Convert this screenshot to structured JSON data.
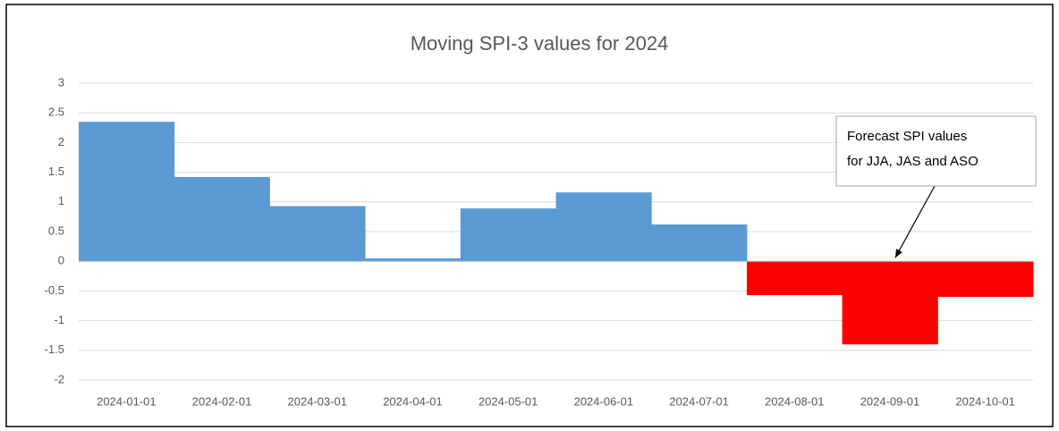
{
  "chart_data": {
    "type": "bar",
    "title": "Moving SPI-3 values for 2024",
    "categories": [
      "2024-01-01",
      "2024-02-01",
      "2024-03-01",
      "2024-04-01",
      "2024-05-01",
      "2024-06-01",
      "2024-07-01",
      "2024-08-01",
      "2024-09-01",
      "2024-10-01"
    ],
    "values": [
      2.35,
      1.42,
      0.93,
      0.05,
      0.89,
      1.16,
      0.62,
      -0.57,
      -1.4,
      -0.6
    ],
    "colors": [
      "#5b9bd5",
      "#5b9bd5",
      "#5b9bd5",
      "#5b9bd5",
      "#5b9bd5",
      "#5b9bd5",
      "#5b9bd5",
      "#ff0000",
      "#ff0000",
      "#ff0000"
    ],
    "ylim": [
      -2,
      3
    ],
    "yticks": [
      -2,
      -1.5,
      -1,
      -0.5,
      0,
      0.5,
      1,
      1.5,
      2,
      2.5,
      3
    ],
    "grid": true,
    "annotation": {
      "lines": [
        "Forecast SPI values",
        "for JJA, JAS and ASO"
      ],
      "target": "2024-09-01"
    }
  }
}
